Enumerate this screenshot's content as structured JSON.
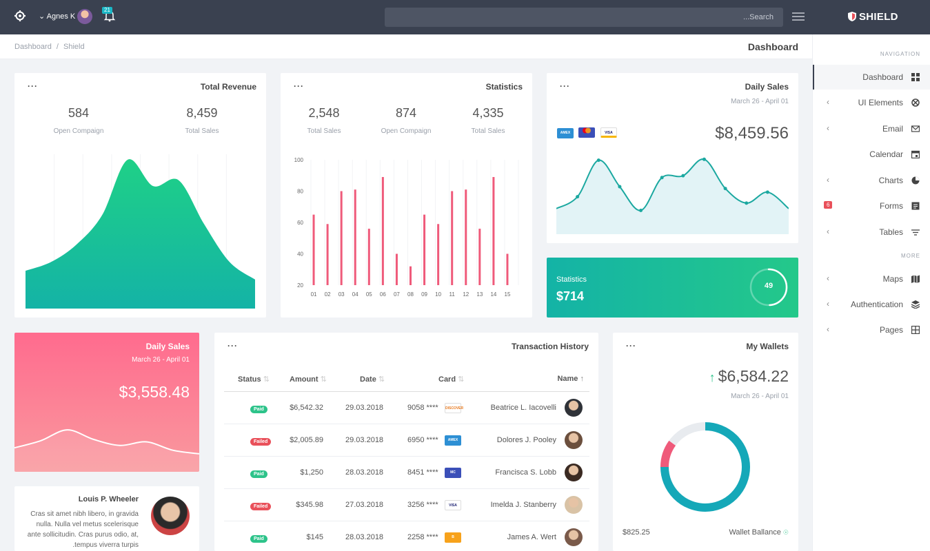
{
  "topbar": {
    "user_name": "Agnes K",
    "notification_count": "21",
    "search_placeholder": "...Search",
    "brand": "SHIELD"
  },
  "breadcrumb": {
    "home": "Dashboard",
    "sep": "/",
    "current": "Shield"
  },
  "page_title": "Dashboard",
  "sidebar": {
    "section_navigation": "NAVIGATION",
    "section_more": "MORE",
    "items": [
      {
        "label": "Dashboard",
        "icon": "dashboard-icon",
        "active": true
      },
      {
        "label": "UI Elements",
        "icon": "ui-elements-icon",
        "chevron": true
      },
      {
        "label": "Email",
        "icon": "email-icon",
        "chevron": true
      },
      {
        "label": "Calendar",
        "icon": "calendar-icon"
      },
      {
        "label": "Charts",
        "icon": "charts-icon",
        "chevron": true
      },
      {
        "label": "Forms",
        "icon": "forms-icon",
        "badge": "6"
      },
      {
        "label": "Tables",
        "icon": "tables-icon",
        "chevron": true
      },
      {
        "label": "Maps",
        "icon": "maps-icon",
        "chevron": true
      },
      {
        "label": "Authentication",
        "icon": "authentication-icon",
        "chevron": true
      },
      {
        "label": "Pages",
        "icon": "pages-icon",
        "chevron": true
      }
    ]
  },
  "total_revenue": {
    "title": "Total Revenue",
    "stats": [
      {
        "value": "584",
        "label": "Open Compaign"
      },
      {
        "value": "8,459",
        "label": "Total Sales"
      }
    ]
  },
  "statistics": {
    "title": "Statistics",
    "stats": [
      {
        "value": "2,548",
        "label": "Total Sales"
      },
      {
        "value": "874",
        "label": "Open Compaign"
      },
      {
        "value": "4,335",
        "label": "Total Sales"
      }
    ]
  },
  "daily_sales_top": {
    "title": "Daily Sales",
    "date_range": "March 26 - April 01",
    "amount": "$8,459.56",
    "card_logos": [
      "amex",
      "mastercard",
      "visa"
    ]
  },
  "statistics_banner": {
    "label": "Statistics",
    "amount": "$714",
    "progress_value": "49",
    "progress_fraction": 0.49
  },
  "daily_sales_pink": {
    "title": "Daily Sales",
    "date_range": "March 26 - April 01",
    "amount": "$3,558.48"
  },
  "profile": {
    "name": "Louis P. Wheeler",
    "text": "Cras sit amet nibh libero, in gravida nulla. Nulla vel metus scelerisque ante sollicitudin. Cras purus odio, at, .tempus viverra turpis"
  },
  "transactions": {
    "title": "Transaction History",
    "columns": [
      "Status",
      "Amount",
      "Date",
      "Card",
      "Name"
    ],
    "rows": [
      {
        "status": "Paid",
        "amount": "$6,542.32",
        "date": "29.03.2018",
        "card": "9058 ****",
        "card_type": "discover",
        "name": "Beatrice L. Iacovelli"
      },
      {
        "status": "Failed",
        "amount": "$2,005.89",
        "date": "29.03.2018",
        "card": "6950 ****",
        "card_type": "amex",
        "name": "Dolores J. Pooley"
      },
      {
        "status": "Paid",
        "amount": "$1,250",
        "date": "28.03.2018",
        "card": "8451 ****",
        "card_type": "mastercard",
        "name": "Francisca S. Lobb"
      },
      {
        "status": "Failed",
        "amount": "$345.98",
        "date": "27.03.2018",
        "card": "3256 ****",
        "card_type": "visa",
        "name": "Imelda J. Stanberry"
      },
      {
        "status": "Paid",
        "amount": "$145",
        "date": "28.03.2018",
        "card": "2258 ****",
        "card_type": "bitcoin",
        "name": "James A. Wert"
      }
    ]
  },
  "wallets": {
    "title": "My Wallets",
    "amount": "$6,584.22",
    "date_range": "March 26 - April 01",
    "balance_value": "$825.25",
    "balance_label": "Wallet Ballance"
  },
  "chart_data": [
    {
      "type": "area",
      "x": [
        0,
        1,
        2,
        3,
        4,
        5,
        6,
        7,
        8,
        9
      ],
      "values": [
        24,
        30,
        42,
        62,
        100,
        82,
        86,
        56,
        30,
        18
      ],
      "colors": [
        "#1fd087",
        "#14b3a6"
      ]
    },
    {
      "type": "bar",
      "categories": [
        "01",
        "02",
        "03",
        "04",
        "05",
        "06",
        "07",
        "08",
        "09",
        "10",
        "11",
        "12",
        "13",
        "14",
        "15"
      ],
      "values": [
        65,
        59,
        80,
        81,
        56,
        89,
        40,
        32,
        65,
        59,
        80,
        81,
        56,
        89,
        40
      ],
      "ylim": [
        20,
        100
      ],
      "yticks": [
        20,
        40,
        60,
        80,
        100
      ],
      "color": "#ef5a7a"
    },
    {
      "type": "line",
      "x": [
        0,
        1,
        2,
        3,
        4,
        5,
        6,
        7,
        8,
        9,
        10,
        11
      ],
      "values": [
        22,
        35,
        75,
        46,
        20,
        56,
        58,
        76,
        44,
        28,
        40,
        22
      ],
      "color": "#1ba8a0"
    },
    {
      "type": "area",
      "values": [
        40,
        52,
        70,
        54,
        44,
        50,
        36,
        30
      ],
      "color": "#ffffff"
    },
    {
      "type": "pie",
      "labels": [
        "teal",
        "pink",
        "grey"
      ],
      "values": [
        75,
        10,
        15
      ],
      "colors": [
        "#15a8b8",
        "#ef5a7a",
        "#e8ebef"
      ]
    }
  ]
}
